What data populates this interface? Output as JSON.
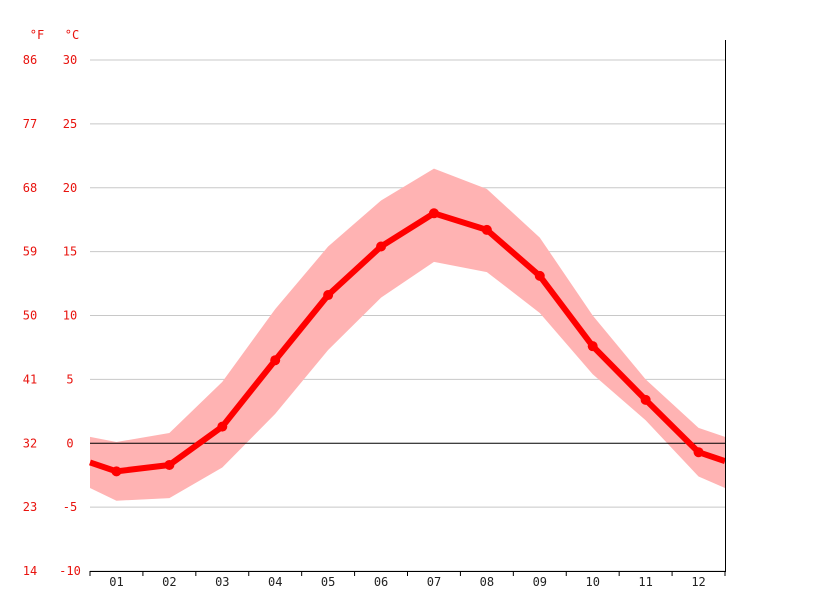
{
  "chart_data": {
    "type": "line",
    "title": "",
    "xlabel": "",
    "ylabel": "",
    "categories": [
      "01",
      "02",
      "03",
      "04",
      "05",
      "06",
      "07",
      "08",
      "09",
      "10",
      "11",
      "12"
    ],
    "series": [
      {
        "values": [
          -2.2,
          -1.7,
          1.3,
          6.5,
          11.6,
          15.4,
          18.0,
          16.7,
          13.1,
          7.6,
          3.4,
          -0.7
        ]
      }
    ],
    "band": {
      "upper": [
        0.1,
        0.8,
        4.8,
        10.5,
        15.4,
        19.0,
        21.5,
        19.9,
        16.1,
        10.0,
        5.0,
        1.2
      ],
      "lower": [
        -4.5,
        -4.3,
        -1.9,
        2.3,
        7.3,
        11.4,
        14.2,
        13.4,
        10.2,
        5.4,
        1.8,
        -2.6
      ]
    },
    "edge_values": {
      "left": -1.5,
      "right": -1.4,
      "upper_left": 0.5,
      "upper_right": 0.5,
      "lower_left": -3.5,
      "lower_right": -3.5
    },
    "ylim": [
      -10,
      30
    ],
    "y_ticks_c": [
      "30",
      "25",
      "20",
      "15",
      "10",
      "5",
      "0",
      "-5",
      "-10"
    ],
    "y_ticks_f": [
      "86",
      "77",
      "68",
      "59",
      "50",
      "41",
      "32",
      "23",
      "14"
    ],
    "unit_f": "°F",
    "unit_c": "°C",
    "grid": true,
    "zero_line": true,
    "colors": {
      "line": "#ff0000",
      "band": "#ffb3b3",
      "grid": "#c8c8c8",
      "zero": "#000000",
      "axis": "#000000",
      "label": "#e8130e",
      "xlabel": "#222222"
    }
  }
}
